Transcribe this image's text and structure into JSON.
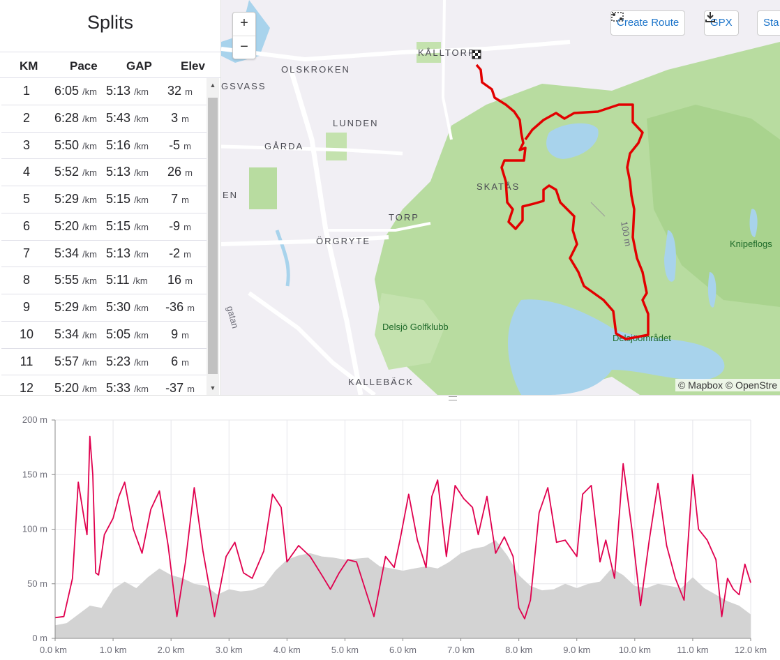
{
  "splits": {
    "title": "Splits",
    "columns": [
      "KM",
      "Pace",
      "GAP",
      "Elev"
    ],
    "pace_unit": "/km",
    "elev_unit": "m",
    "rows": [
      {
        "km": "1",
        "pace": "6:05",
        "gap": "5:13",
        "elev": "32"
      },
      {
        "km": "2",
        "pace": "6:28",
        "gap": "5:43",
        "elev": "3"
      },
      {
        "km": "3",
        "pace": "5:50",
        "gap": "5:16",
        "elev": "-5"
      },
      {
        "km": "4",
        "pace": "5:52",
        "gap": "5:13",
        "elev": "26"
      },
      {
        "km": "5",
        "pace": "5:29",
        "gap": "5:15",
        "elev": "7"
      },
      {
        "km": "6",
        "pace": "5:20",
        "gap": "5:15",
        "elev": "-9"
      },
      {
        "km": "7",
        "pace": "5:34",
        "gap": "5:13",
        "elev": "-2"
      },
      {
        "km": "8",
        "pace": "5:55",
        "gap": "5:11",
        "elev": "16"
      },
      {
        "km": "9",
        "pace": "5:29",
        "gap": "5:30",
        "elev": "-36"
      },
      {
        "km": "10",
        "pace": "5:34",
        "gap": "5:05",
        "elev": "9"
      },
      {
        "km": "11",
        "pace": "5:57",
        "gap": "5:23",
        "elev": "6"
      },
      {
        "km": "12",
        "pace": "5:20",
        "gap": "5:33",
        "elev": "-37"
      }
    ]
  },
  "map": {
    "zoom_in": "+",
    "zoom_out": "−",
    "buttons": {
      "create_route": "Create Route",
      "gpx": "GPX",
      "third": "Sta"
    },
    "attribution": "© Mapbox © OpenStre",
    "labels": {
      "kalltorp": "KÅLLTORP",
      "olskroken": "OLSKROKEN",
      "gsvass": "GSVASS",
      "lunden": "LUNDEN",
      "garda": "GÅRDA",
      "skatas": "SKATÅS",
      "en": "EN",
      "torp": "TORP",
      "orgryte": "ÖRGRYTE",
      "kalleback": "KALLEBÄCK",
      "golf": "Delsjö Golfklubb",
      "delsjo": "Delsjöområdet",
      "knipe": "Knipeflogs",
      "contour": "100 m",
      "street": "gatan"
    },
    "colors": {
      "route": "#e20000",
      "forest": "#b8dca0",
      "water": "#a8d3ec",
      "urban": "#f1eff4"
    }
  },
  "chart_data": {
    "type": "area",
    "title": "",
    "xlabel": "",
    "ylabel": "",
    "x_unit": "km",
    "y_unit": "m",
    "xlim": [
      0,
      12.0
    ],
    "ylim": [
      0,
      200
    ],
    "x_ticks": [
      "0.0 km",
      "1.0 km",
      "2.0 km",
      "3.0 km",
      "4.0 km",
      "5.0 km",
      "6.0 km",
      "7.0 km",
      "8.0 km",
      "9.0 km",
      "10.0 km",
      "11.0 km",
      "12.0 km"
    ],
    "y_ticks": [
      "0 m",
      "50 m",
      "100 m",
      "150 m",
      "200 m"
    ],
    "grid": true,
    "legend": "none",
    "series": [
      {
        "style": "area",
        "color": "#d3d3d3",
        "x": [
          0,
          0.2,
          0.4,
          0.6,
          0.8,
          1.0,
          1.2,
          1.4,
          1.6,
          1.8,
          2.0,
          2.2,
          2.4,
          2.6,
          2.8,
          3.0,
          3.2,
          3.4,
          3.6,
          3.8,
          4.0,
          4.2,
          4.4,
          4.6,
          4.8,
          5.0,
          5.2,
          5.4,
          5.6,
          5.8,
          6.0,
          6.2,
          6.4,
          6.6,
          6.8,
          7.0,
          7.2,
          7.4,
          7.6,
          7.8,
          8.0,
          8.2,
          8.4,
          8.6,
          8.8,
          9.0,
          9.2,
          9.4,
          9.6,
          9.8,
          10.0,
          10.2,
          10.4,
          10.6,
          10.8,
          11.0,
          11.2,
          11.4,
          11.6,
          11.8,
          12.0
        ],
        "values": [
          12,
          14,
          22,
          30,
          28,
          45,
          52,
          46,
          56,
          64,
          58,
          55,
          50,
          48,
          40,
          45,
          43,
          44,
          48,
          62,
          72,
          76,
          78,
          75,
          74,
          72,
          73,
          74,
          66,
          64,
          62,
          64,
          66,
          64,
          70,
          78,
          82,
          84,
          90,
          76,
          58,
          48,
          44,
          45,
          50,
          46,
          50,
          52,
          64,
          58,
          48,
          46,
          50,
          48,
          46,
          56,
          46,
          40,
          34,
          30,
          22
        ]
      },
      {
        "style": "line",
        "color": "#e0004e",
        "x": [
          0,
          0.15,
          0.3,
          0.4,
          0.5,
          0.55,
          0.6,
          0.65,
          0.7,
          0.75,
          0.85,
          1.0,
          1.1,
          1.2,
          1.35,
          1.5,
          1.65,
          1.8,
          1.95,
          2.1,
          2.25,
          2.4,
          2.55,
          2.75,
          2.95,
          3.1,
          3.25,
          3.4,
          3.6,
          3.75,
          3.9,
          4.0,
          4.2,
          4.4,
          4.6,
          4.75,
          4.9,
          5.05,
          5.2,
          5.35,
          5.5,
          5.7,
          5.85,
          5.95,
          6.1,
          6.25,
          6.4,
          6.5,
          6.6,
          6.75,
          6.9,
          7.05,
          7.2,
          7.3,
          7.45,
          7.6,
          7.75,
          7.9,
          8.0,
          8.1,
          8.2,
          8.35,
          8.5,
          8.65,
          8.8,
          9.0,
          9.1,
          9.25,
          9.4,
          9.5,
          9.65,
          9.8,
          9.95,
          10.1,
          10.25,
          10.4,
          10.55,
          10.7,
          10.85,
          11.0,
          11.1,
          11.25,
          11.4,
          11.5,
          11.6,
          11.7,
          11.8,
          11.9,
          12.0
        ],
        "values": [
          19,
          20,
          55,
          143,
          110,
          95,
          185,
          150,
          60,
          58,
          95,
          110,
          130,
          143,
          100,
          78,
          118,
          135,
          85,
          20,
          70,
          138,
          80,
          20,
          75,
          88,
          60,
          55,
          80,
          132,
          120,
          70,
          85,
          75,
          58,
          45,
          60,
          72,
          70,
          45,
          20,
          75,
          65,
          90,
          132,
          90,
          65,
          130,
          145,
          75,
          140,
          128,
          120,
          95,
          130,
          78,
          93,
          75,
          28,
          18,
          35,
          115,
          138,
          88,
          90,
          75,
          132,
          140,
          70,
          90,
          55,
          160,
          100,
          30,
          90,
          142,
          85,
          55,
          35,
          150,
          100,
          90,
          72,
          20,
          55,
          45,
          40,
          68,
          51
        ]
      }
    ]
  }
}
